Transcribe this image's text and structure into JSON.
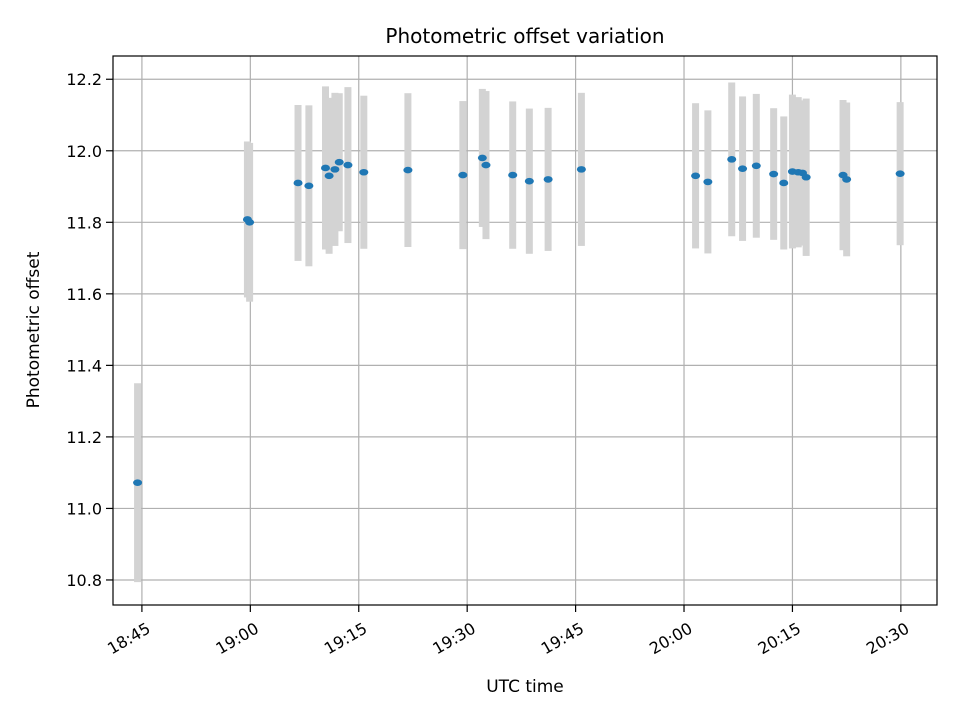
{
  "chart_data": {
    "type": "scatter",
    "title": "Photometric offset variation",
    "xlabel": "UTC time",
    "ylabel": "Photometric offset",
    "x_axis_type": "time",
    "xlim": [
      "18:41",
      "20:35"
    ],
    "ylim": [
      10.73,
      12.265
    ],
    "x_ticks": [
      "18:45",
      "19:00",
      "19:15",
      "19:30",
      "19:45",
      "20:00",
      "20:15",
      "20:30"
    ],
    "y_ticks": [
      10.8,
      11.0,
      11.2,
      11.4,
      11.6,
      11.8,
      12.0,
      12.2
    ],
    "y_tick_labels": [
      "10.8",
      "11.0",
      "11.2",
      "11.4",
      "11.6",
      "11.8",
      "12.0",
      "12.2"
    ],
    "grid": true,
    "point_color": "#1f77b4",
    "errorbar_color": "#d3d3d3",
    "points": [
      {
        "x": "18:44:24",
        "y": 11.072,
        "err": 0.278
      },
      {
        "x": "18:59:36",
        "y": 11.808,
        "err": 0.218
      },
      {
        "x": "18:59:54",
        "y": 11.8,
        "err": 0.222
      },
      {
        "x": "19:06:36",
        "y": 11.91,
        "err": 0.218
      },
      {
        "x": "19:08:06",
        "y": 11.902,
        "err": 0.225
      },
      {
        "x": "19:10:24",
        "y": 11.952,
        "err": 0.228
      },
      {
        "x": "19:10:54",
        "y": 11.93,
        "err": 0.218
      },
      {
        "x": "19:11:42",
        "y": 11.948,
        "err": 0.214
      },
      {
        "x": "19:12:18",
        "y": 11.968,
        "err": 0.193
      },
      {
        "x": "19:13:30",
        "y": 11.96,
        "err": 0.218
      },
      {
        "x": "19:15:42",
        "y": 11.94,
        "err": 0.214
      },
      {
        "x": "19:21:48",
        "y": 11.946,
        "err": 0.215
      },
      {
        "x": "19:29:24",
        "y": 11.932,
        "err": 0.207
      },
      {
        "x": "19:32:06",
        "y": 11.98,
        "err": 0.193
      },
      {
        "x": "19:32:36",
        "y": 11.96,
        "err": 0.207
      },
      {
        "x": "19:36:18",
        "y": 11.932,
        "err": 0.206
      },
      {
        "x": "19:38:36",
        "y": 11.915,
        "err": 0.203
      },
      {
        "x": "19:41:12",
        "y": 11.92,
        "err": 0.2
      },
      {
        "x": "19:45:48",
        "y": 11.948,
        "err": 0.214
      },
      {
        "x": "20:01:36",
        "y": 11.93,
        "err": 0.203
      },
      {
        "x": "20:03:18",
        "y": 11.913,
        "err": 0.2
      },
      {
        "x": "20:06:36",
        "y": 11.976,
        "err": 0.215
      },
      {
        "x": "20:08:06",
        "y": 11.95,
        "err": 0.202
      },
      {
        "x": "20:10:00",
        "y": 11.958,
        "err": 0.201
      },
      {
        "x": "20:12:24",
        "y": 11.935,
        "err": 0.184
      },
      {
        "x": "20:13:48",
        "y": 11.91,
        "err": 0.186
      },
      {
        "x": "20:15:00",
        "y": 11.942,
        "err": 0.215
      },
      {
        "x": "20:15:48",
        "y": 11.94,
        "err": 0.21
      },
      {
        "x": "20:16:24",
        "y": 11.938,
        "err": 0.203
      },
      {
        "x": "20:16:54",
        "y": 11.926,
        "err": 0.22
      },
      {
        "x": "20:22:00",
        "y": 11.932,
        "err": 0.21
      },
      {
        "x": "20:22:30",
        "y": 11.92,
        "err": 0.215
      },
      {
        "x": "20:29:54",
        "y": 11.936,
        "err": 0.2
      }
    ]
  }
}
